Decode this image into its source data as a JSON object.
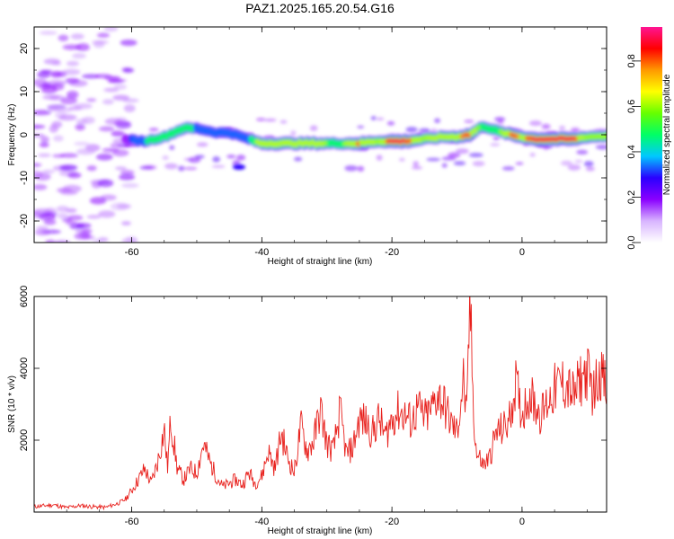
{
  "chart_data": [
    {
      "type": "heatmap",
      "title": "PAZ1.2025.165.20.54.G16",
      "xlabel": "Height of straight line (km)",
      "ylabel": "Frequency (Hz)",
      "xlim": [
        -75,
        13
      ],
      "ylim": [
        -25,
        25
      ],
      "xticks": [
        -60,
        -40,
        -20,
        0
      ],
      "yticks": [
        -20,
        -10,
        0,
        10,
        20
      ],
      "colorbar": {
        "label": "Normalized spectral amplitude",
        "range": [
          0.0,
          0.95
        ],
        "ticks": [
          0.0,
          0.2,
          0.4,
          0.6,
          0.8
        ],
        "colors": [
          "#ffffff",
          "#d8b4ff",
          "#8a00ff",
          "#2a00ff",
          "#00c8ff",
          "#00ff66",
          "#66ff00",
          "#ffff00",
          "#ff9900",
          "#ff0000",
          "#ff1493"
        ]
      },
      "ridge": {
        "x": [
          -61,
          -58,
          -55,
          -52,
          -50,
          -47,
          -45,
          -42,
          -40,
          -38,
          -35,
          -32,
          -30,
          -28,
          -25,
          -22,
          -20,
          -18,
          -15,
          -12,
          -10,
          -8,
          -6,
          -5,
          -3,
          -1,
          0,
          2,
          5,
          8,
          10,
          13
        ],
        "freq": [
          -1,
          -1.5,
          -0.5,
          1.5,
          1.5,
          0.5,
          0.5,
          -1,
          -2,
          -2,
          -2,
          -2,
          -2,
          -2,
          -2,
          -1.5,
          -1.5,
          -1.5,
          -1,
          -0.5,
          -0.5,
          0,
          2,
          1.5,
          0.5,
          -0.2,
          -0.5,
          -1,
          -1,
          -1,
          -0.5,
          -0.3
        ],
        "amp": [
          0.25,
          0.45,
          0.5,
          0.55,
          0.45,
          0.4,
          0.45,
          0.45,
          0.7,
          0.75,
          0.7,
          0.72,
          0.6,
          0.5,
          0.8,
          0.6,
          0.9,
          0.9,
          0.6,
          0.65,
          0.7,
          0.85,
          0.5,
          0.5,
          0.6,
          0.85,
          0.7,
          0.9,
          0.9,
          0.9,
          0.6,
          0.6
        ]
      },
      "noise_region": {
        "xlim": [
          -75,
          -60
        ],
        "ylim": [
          -25,
          25
        ],
        "amp_max": 0.2
      }
    },
    {
      "type": "line",
      "xlabel": "Height of straight line (km)",
      "ylabel": "SNR (10 * v/v)",
      "xlim": [
        -75,
        13
      ],
      "ylim": [
        0,
        6000
      ],
      "xticks": [
        -60,
        -40,
        -20,
        0
      ],
      "yticks": [
        2000,
        4000,
        6000
      ],
      "color": "#e8201c",
      "x": [
        -75,
        -72,
        -70,
        -68,
        -66,
        -64,
        -62,
        -61,
        -60,
        -59,
        -58,
        -57,
        -56,
        -55,
        -54.5,
        -54,
        -53,
        -52,
        -51,
        -50,
        -49,
        -48,
        -47,
        -46,
        -45,
        -44,
        -43,
        -42,
        -41,
        -40,
        -39,
        -38,
        -37,
        -36,
        -35,
        -34,
        -33,
        -32,
        -31,
        -30,
        -29,
        -28,
        -27,
        -26,
        -25,
        -24,
        -23,
        -22,
        -21,
        -20,
        -19,
        -18,
        -17,
        -16,
        -15,
        -14,
        -13,
        -12,
        -11,
        -10,
        -9,
        -8.5,
        -8,
        -7.5,
        -7,
        -6.5,
        -6,
        -5,
        -4,
        -3,
        -2,
        -1,
        0,
        1,
        2,
        3,
        4,
        5,
        6,
        7,
        8,
        9,
        10,
        11,
        12,
        13
      ],
      "y": [
        150,
        200,
        120,
        180,
        150,
        130,
        250,
        350,
        600,
        900,
        1200,
        800,
        1400,
        2300,
        1200,
        2600,
        1200,
        900,
        1200,
        1100,
        1900,
        1400,
        1000,
        700,
        800,
        900,
        750,
        1100,
        800,
        1000,
        1700,
        1200,
        2200,
        1500,
        1100,
        2400,
        1700,
        2000,
        2900,
        1900,
        1700,
        2800,
        1600,
        1800,
        2600,
        2500,
        2200,
        2600,
        2100,
        2600,
        2800,
        2700,
        2500,
        2900,
        2600,
        2800,
        3300,
        3000,
        2500,
        2200,
        3700,
        2500,
        6000,
        3000,
        1600,
        1500,
        1300,
        1500,
        2200,
        2300,
        2500,
        3600,
        2700,
        3300,
        3000,
        2700,
        3100,
        3400,
        3600,
        3500,
        3200,
        3700,
        3900,
        3300,
        4000,
        3300
      ]
    }
  ]
}
